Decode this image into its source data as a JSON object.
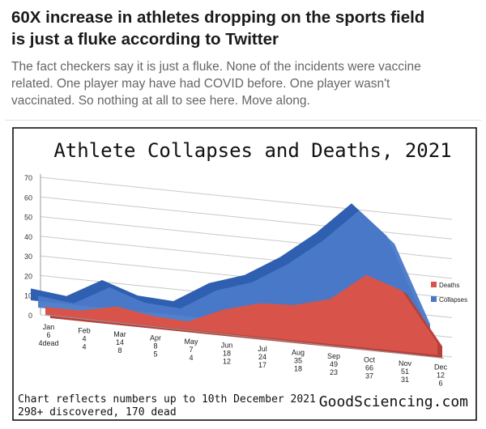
{
  "article": {
    "headline_line1": "60X increase in athletes dropping on the sports field",
    "headline_line2": "is just a fluke according to Twitter",
    "subtitle_line1": "The fact checkers say it is just a fluke. None of the incidents were vaccine",
    "subtitle_line2": "related. One player may have had COVID before. One player wasn't",
    "subtitle_line3": "vaccinated. So nothing at all to see here. Move along."
  },
  "chart_data": {
    "type": "area",
    "title": "Athlete Collapses and Deaths, 2021",
    "categories": [
      "Jan",
      "Feb",
      "Mar",
      "Apr",
      "May",
      "Jun",
      "Jul",
      "Aug",
      "Sep",
      "Oct",
      "Nov",
      "Dec"
    ],
    "series": [
      {
        "name": "Collapses",
        "values": [
          6,
          4,
          14,
          8,
          7,
          18,
          24,
          35,
          49,
          66,
          51,
          12
        ],
        "color": "#4a79c8"
      },
      {
        "name": "Deaths",
        "values": [
          4,
          4,
          8,
          5,
          4,
          12,
          17,
          18,
          23,
          37,
          31,
          6
        ],
        "color": "#d8544b"
      }
    ],
    "month_labels": [
      [
        "Jan",
        "6",
        "4dead"
      ],
      [
        "Feb",
        "4",
        "4"
      ],
      [
        "Mar",
        "14",
        "8"
      ],
      [
        "Apr",
        "8",
        "5"
      ],
      [
        "May",
        "7",
        "4"
      ],
      [
        "Jun",
        "18",
        "12"
      ],
      [
        "Jul",
        "24",
        "17"
      ],
      [
        "Aug",
        "35",
        "18"
      ],
      [
        "Sep",
        "49",
        "23"
      ],
      [
        "Oct",
        "66",
        "37"
      ],
      [
        "Nov",
        "51",
        "31"
      ],
      [
        "Dec",
        "12",
        "6"
      ]
    ],
    "yticks": [
      0,
      10,
      20,
      30,
      40,
      50,
      60,
      70
    ],
    "ylim": [
      0,
      70
    ],
    "grid": true,
    "legend_position": "right",
    "legend": [
      "Deaths",
      "Collapses"
    ],
    "footnote_line1": "Chart reflects numbers up to 10th December 2021",
    "footnote_line2": "298+ discovered, 170 dead",
    "source": "GoodSciencing.com"
  }
}
